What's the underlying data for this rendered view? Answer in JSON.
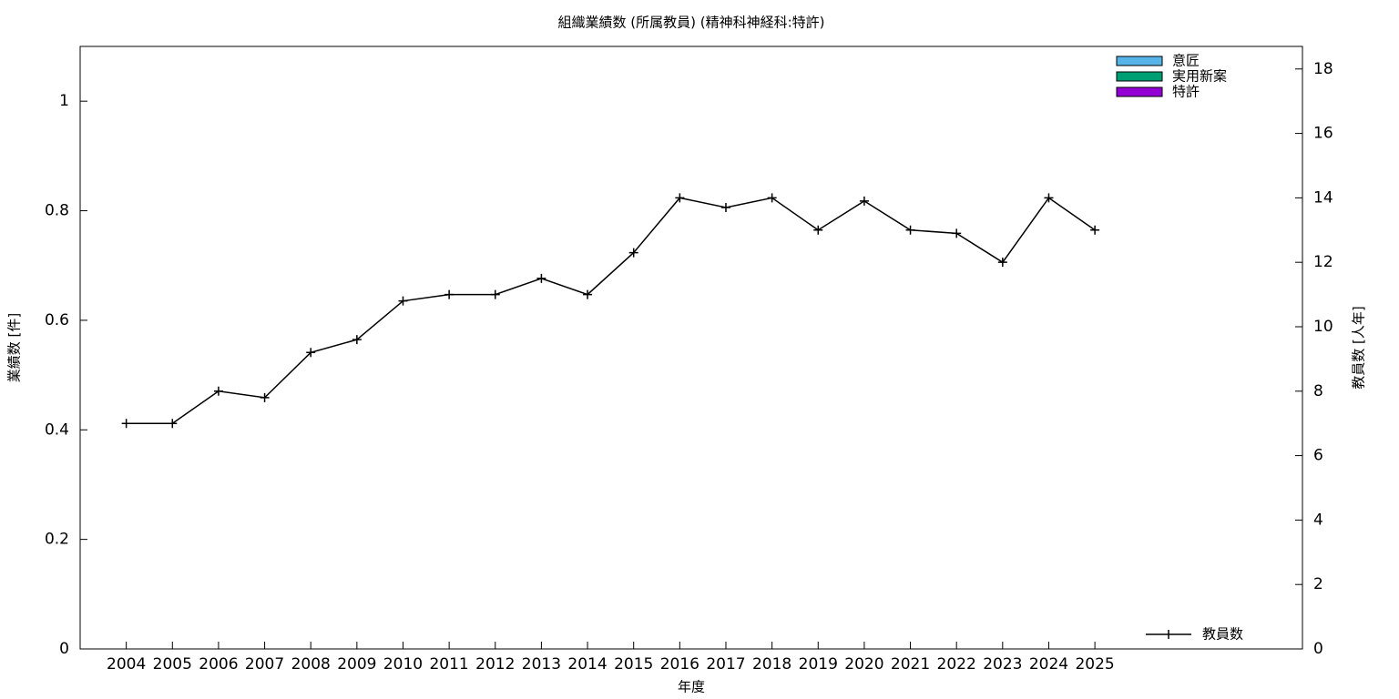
{
  "chart_data": {
    "type": "bar",
    "title": "組織業績数 (所属教員) (精神科神経科:特許)",
    "x_label": "年度",
    "y_label": "業績数 [件]",
    "y2_label": "教員数 [人年]",
    "categories": [
      "2004",
      "2005",
      "2006",
      "2007",
      "2008",
      "2009",
      "2010",
      "2011",
      "2012",
      "2013",
      "2014",
      "2015",
      "2016",
      "2017",
      "2018",
      "2019",
      "2020",
      "2021",
      "2022",
      "2023",
      "2024",
      "2025"
    ],
    "series": [
      {
        "name": "意匠",
        "color": "#56b4e9",
        "type": "bar",
        "values": [
          0,
          0,
          0,
          0,
          0,
          0,
          0,
          0,
          0,
          0,
          0,
          0,
          0,
          0,
          0,
          0,
          0,
          0,
          0,
          0,
          0,
          0
        ]
      },
      {
        "name": "実用新案",
        "color": "#009e73",
        "type": "bar",
        "values": [
          0,
          0,
          0,
          0,
          0,
          0,
          0,
          0,
          0,
          0,
          0,
          0,
          0,
          0,
          0,
          0,
          0,
          0,
          0,
          0,
          0,
          0
        ]
      },
      {
        "name": "特許",
        "color": "#9400d3",
        "type": "bar",
        "values": [
          0,
          0,
          0,
          0,
          0,
          0,
          0,
          0,
          0,
          0,
          0,
          0,
          0,
          0,
          0,
          0,
          0,
          0,
          0,
          0,
          0,
          0
        ]
      },
      {
        "name": "教員数",
        "color": "#000000",
        "type": "line",
        "axis": "y2",
        "values": [
          7,
          7,
          8,
          7.8,
          9.2,
          9.6,
          10.8,
          11,
          11,
          11.5,
          11,
          12.3,
          14,
          13.7,
          14,
          13,
          13.9,
          13,
          12.9,
          12,
          14,
          13
        ]
      }
    ],
    "ylim": [
      0,
      1.1
    ],
    "yticks": [
      0,
      0.2,
      0.4,
      0.6,
      0.8,
      1
    ],
    "y2lim": [
      0,
      18.7
    ],
    "y2ticks": [
      0,
      2,
      4,
      6,
      8,
      10,
      12,
      14,
      16,
      18
    ],
    "stacked": true
  }
}
